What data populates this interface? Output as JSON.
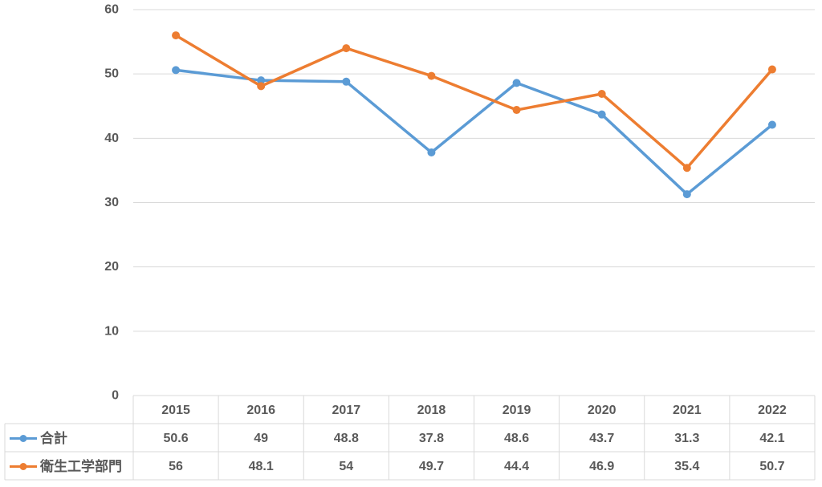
{
  "chart_data": {
    "type": "line",
    "title": "",
    "xlabel": "",
    "ylabel": "",
    "ylim": [
      0,
      60
    ],
    "yticks": [
      "0",
      "10",
      "20",
      "30",
      "40",
      "50",
      "60"
    ],
    "grid": true,
    "legend": "table-left",
    "categories": [
      "2015",
      "2016",
      "2017",
      "2018",
      "2019",
      "2020",
      "2021",
      "2022"
    ],
    "series": [
      {
        "name": "合計",
        "color": "#5b9bd5",
        "values": [
          50.6,
          49,
          48.8,
          37.8,
          48.6,
          43.7,
          31.3,
          42.1
        ],
        "labels": [
          "50.6",
          "49",
          "48.8",
          "37.8",
          "48.6",
          "43.7",
          "31.3",
          "42.1"
        ]
      },
      {
        "name": "衛生工学部門",
        "color": "#ed7d31",
        "values": [
          56,
          48.1,
          54,
          49.7,
          44.4,
          46.9,
          35.4,
          50.7
        ],
        "labels": [
          "56",
          "48.1",
          "54",
          "49.7",
          "44.4",
          "46.9",
          "35.4",
          "50.7"
        ]
      }
    ]
  }
}
